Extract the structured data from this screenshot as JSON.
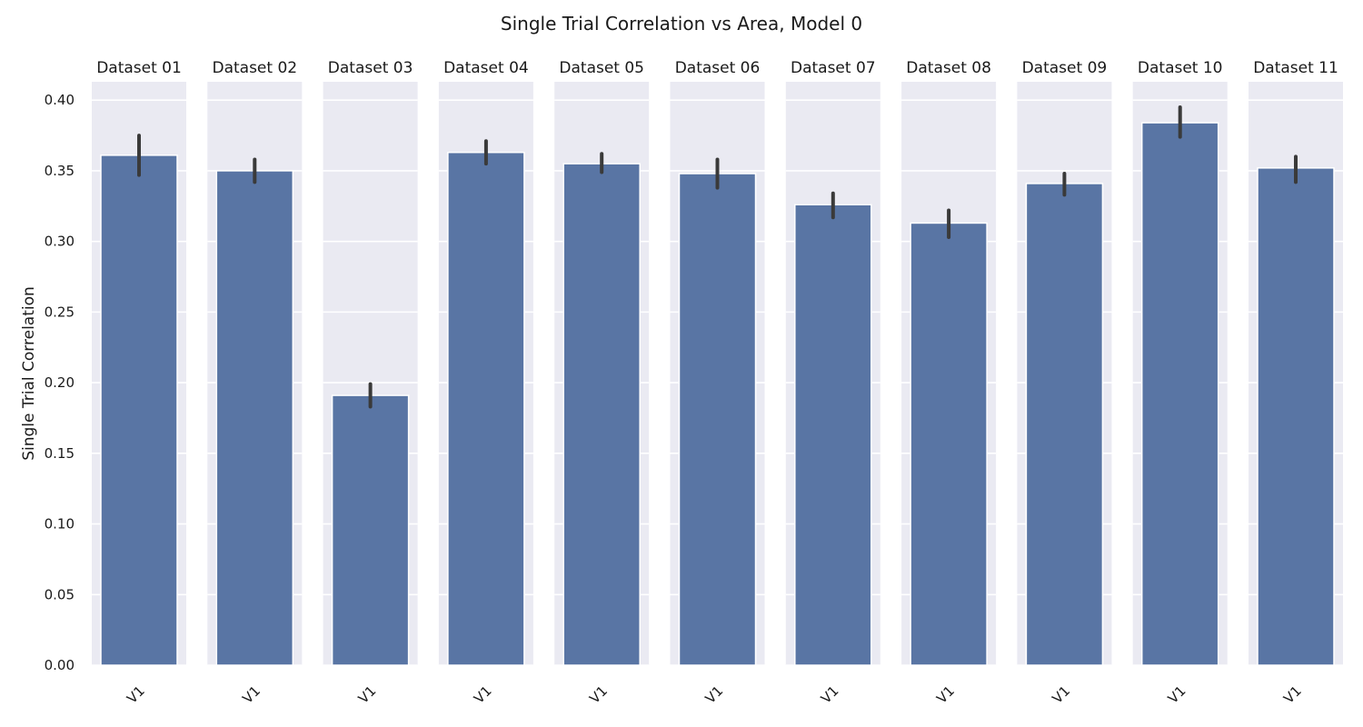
{
  "chart_data": {
    "type": "bar",
    "title": "Single Trial Correlation vs Area, Model 0",
    "ylabel": "Single Trial Correlation",
    "xlabel": "",
    "ylim": [
      0,
      0.413
    ],
    "yticks": [
      "0.00",
      "0.05",
      "0.10",
      "0.15",
      "0.20",
      "0.25",
      "0.30",
      "0.35",
      "0.40"
    ],
    "grid": true,
    "bar_color": "#5975a4",
    "errorbar_color": "#3a3a3a",
    "panel_background": "#eaeaf2",
    "facets": [
      {
        "title": "Dataset 01",
        "category": "V1",
        "value": 0.361,
        "err_low": 0.347,
        "err_high": 0.375
      },
      {
        "title": "Dataset 02",
        "category": "V1",
        "value": 0.35,
        "err_low": 0.342,
        "err_high": 0.358
      },
      {
        "title": "Dataset 03",
        "category": "V1",
        "value": 0.191,
        "err_low": 0.183,
        "err_high": 0.199
      },
      {
        "title": "Dataset 04",
        "category": "V1",
        "value": 0.363,
        "err_low": 0.355,
        "err_high": 0.371
      },
      {
        "title": "Dataset 05",
        "category": "V1",
        "value": 0.355,
        "err_low": 0.349,
        "err_high": 0.362
      },
      {
        "title": "Dataset 06",
        "category": "V1",
        "value": 0.348,
        "err_low": 0.338,
        "err_high": 0.358
      },
      {
        "title": "Dataset 07",
        "category": "V1",
        "value": 0.326,
        "err_low": 0.317,
        "err_high": 0.334
      },
      {
        "title": "Dataset 08",
        "category": "V1",
        "value": 0.313,
        "err_low": 0.303,
        "err_high": 0.322
      },
      {
        "title": "Dataset 09",
        "category": "V1",
        "value": 0.341,
        "err_low": 0.333,
        "err_high": 0.348
      },
      {
        "title": "Dataset 10",
        "category": "V1",
        "value": 0.384,
        "err_low": 0.374,
        "err_high": 0.395
      },
      {
        "title": "Dataset 11",
        "category": "V1",
        "value": 0.352,
        "err_low": 0.342,
        "err_high": 0.36
      }
    ]
  }
}
